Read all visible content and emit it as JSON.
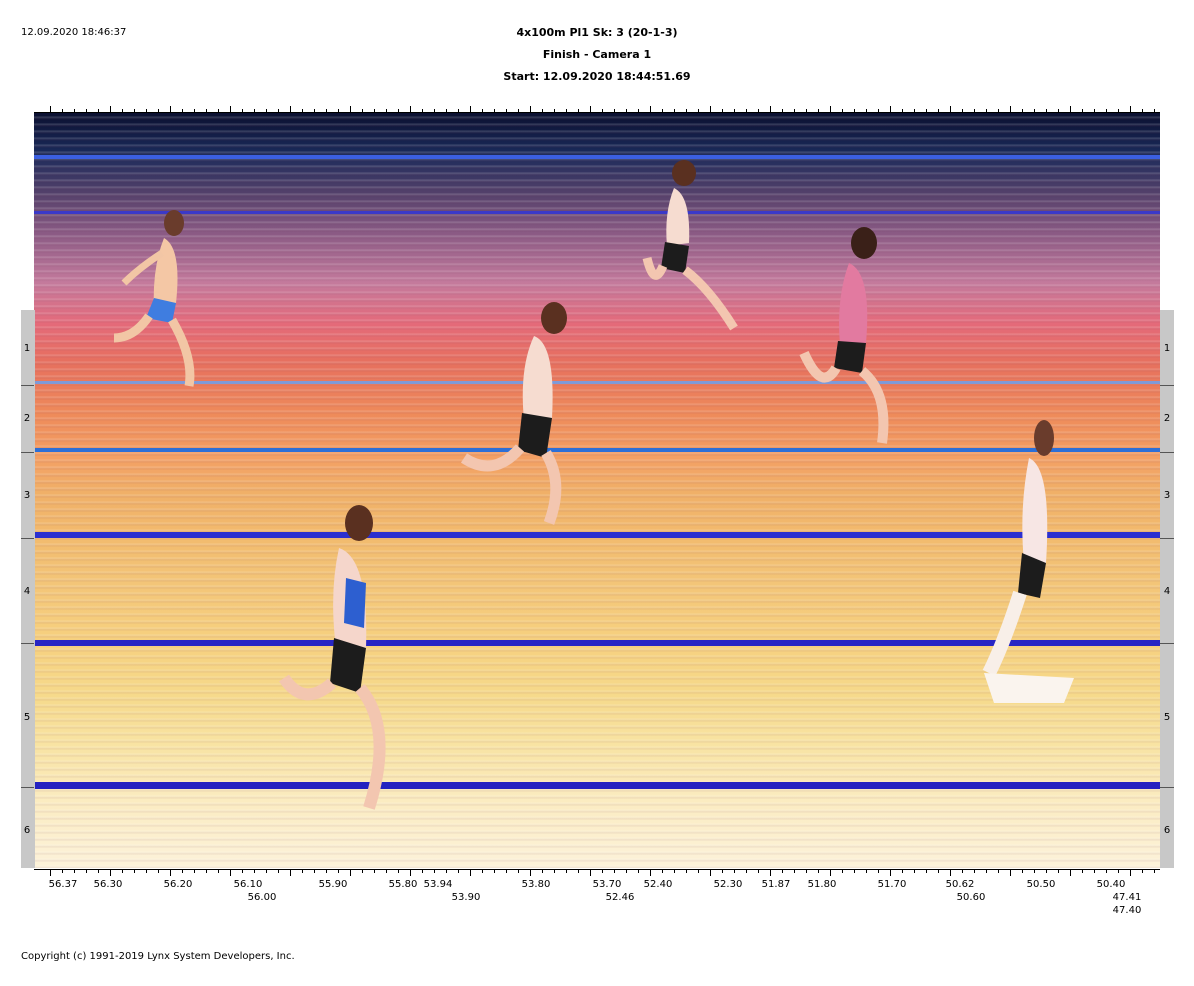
{
  "header": {
    "timestamp": "12.09.2020 18:46:37",
    "line1": "4x100m Pl1   Sk: 3 (20-1-3)",
    "line2": "Finish - Camera 1",
    "line3": "Start: 12.09.2020 18:44:51.69"
  },
  "lanes": [
    "1",
    "2",
    "3",
    "4",
    "5",
    "6"
  ],
  "time_labels_row1": [
    "56.37",
    "56.30",
    "56.20",
    "56.10",
    "55.90",
    "55.80",
    "53.94",
    "53.80",
    "53.70",
    "52.40",
    "52.30",
    "51.87",
    "51.80",
    "51.70",
    "50.62",
    "50.50",
    "50.40"
  ],
  "time_labels_row2": [
    "56.00",
    "53.90",
    "52.46",
    "50.60",
    "47.41"
  ],
  "time_labels_row3": [
    "47.40"
  ],
  "footer": {
    "copyright": "Copyright (c) 1991-2019 Lynx System Developers, Inc."
  }
}
